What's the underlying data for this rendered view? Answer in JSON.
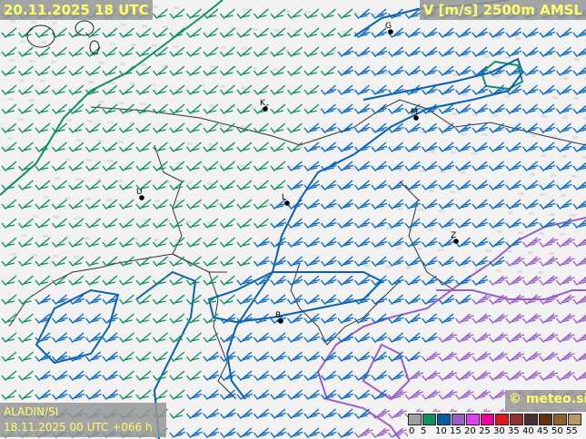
{
  "header": {
    "valid_time": "20.11.2025 18 UTC",
    "parameter": "V [m/s] 2500m AMSL"
  },
  "footer": {
    "model": "ALADIN/SI",
    "run": "18.11.2025 00 UTC +066 h",
    "copyright": "© meteo.si"
  },
  "legend": {
    "ticks": [
      "0",
      "5",
      "10",
      "15",
      "20",
      "25",
      "30",
      "35",
      "40",
      "45",
      "50",
      "55"
    ],
    "colors": [
      "#a0a0a0",
      "#109060",
      "#0a5aa8",
      "#9a60c8",
      "#e040f0",
      "#f000a0",
      "#e01818",
      "#983030",
      "#483030",
      "#603010",
      "#906030",
      "#b89868"
    ]
  },
  "map": {
    "cities": [
      {
        "label": "G"
      },
      {
        "label": "K"
      },
      {
        "label": "M"
      },
      {
        "label": "U"
      },
      {
        "label": "L"
      },
      {
        "label": "Z"
      },
      {
        "label": "B"
      }
    ],
    "barb_colors": {
      "weak": "#109060",
      "moderate": "#0a6ac0",
      "strong": "#9a60c8"
    },
    "contour_colors": {
      "5": "#109060",
      "10": "#0a60b0",
      "15": "#9a60c8"
    }
  }
}
